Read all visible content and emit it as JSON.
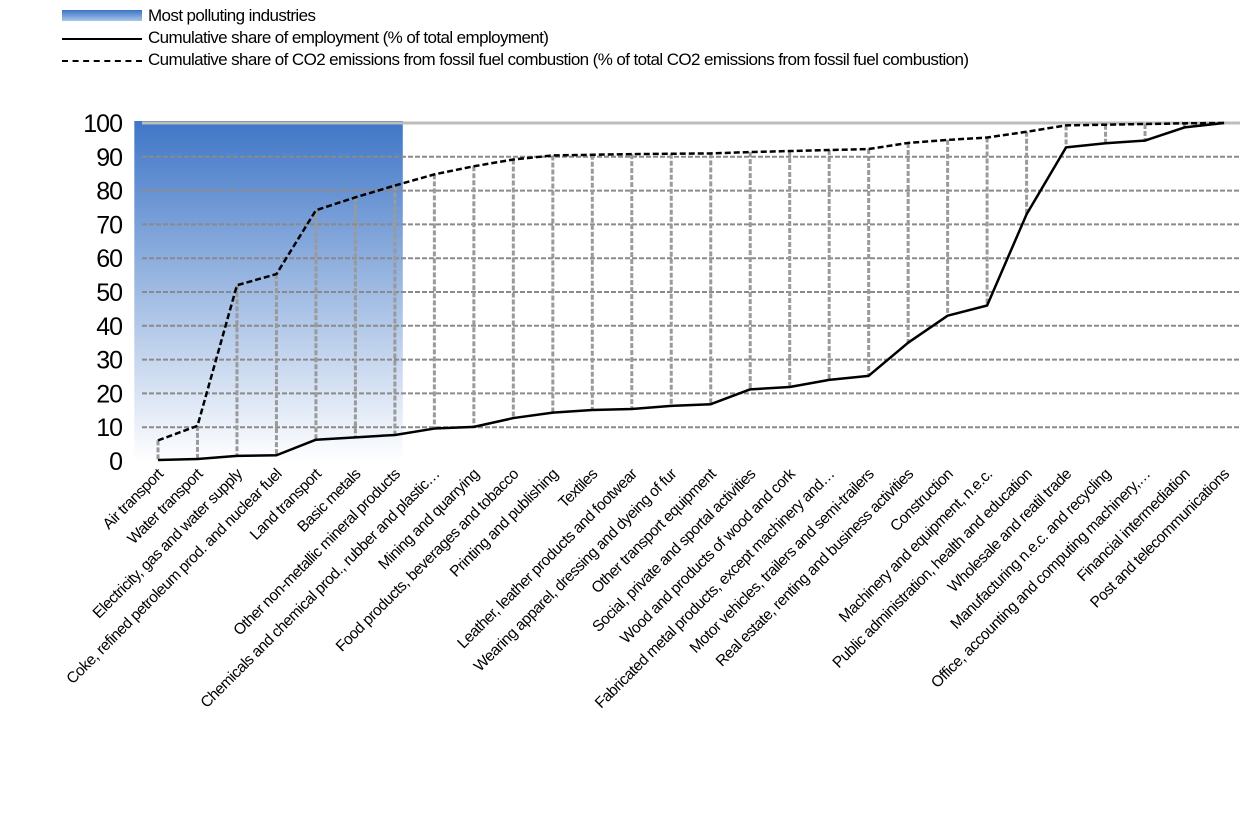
{
  "chart_data": {
    "type": "line",
    "title": "",
    "xlabel": "",
    "ylabel": "",
    "ylim": [
      0,
      100
    ],
    "yticks": [
      0,
      10,
      20,
      30,
      40,
      50,
      60,
      70,
      80,
      90,
      100
    ],
    "grid": true,
    "legend_position": "top-left",
    "highlight": {
      "name": "Most polluting industries",
      "from_category": "Air transport",
      "to_category": "Other non-metallic mineral products",
      "color": "#4a7fcb"
    },
    "categories": [
      "Air transport",
      "Water transport",
      "Electricity, gas and water supply",
      "Coke, refined petroleum prod. and nuclear fuel",
      "Land transport",
      "Basic metals",
      "Other non-metallic mineral products",
      "Chemicals and chemical prod., rubber and plastic…",
      "Mining and quarrying",
      "Food products, beverages and tobacco",
      "Printing and publishing",
      "Textiles",
      "Leather, leather products and footwear",
      "Wearing apparel, dressing and dyeing of fur",
      "Other transport equipment",
      "Social, private and sportal activities",
      "Wood and products of wood and cork",
      "Fabricated metal products, except machinery and…",
      "Motor vehicles, trailers and semi-trailers",
      "Real estate, renting and business activities",
      "Construction",
      "Machinery and equipment, n.e.c.",
      "Public administration, health and education",
      "Wholesale and reatil trade",
      "Manufacturing n.e.c. and recycling",
      "Office, accounting and computing machinery,…",
      "Financial intermediation",
      "Post and telecommunications"
    ],
    "series": [
      {
        "name": "Cumulative share of employment (% of total employment)",
        "style": "solid",
        "color": "#000000",
        "values": [
          0.3,
          0.6,
          1.5,
          1.7,
          6.3,
          7.0,
          7.7,
          9.6,
          10.1,
          12.7,
          14.3,
          15.1,
          15.4,
          16.3,
          16.8,
          21.2,
          21.9,
          24.0,
          25.2,
          35.0,
          43.0,
          46.0,
          73.0,
          92.8,
          94.0,
          94.8,
          98.7,
          100
        ]
      },
      {
        "name": "Cumulative share of CO2 emissions from fossil fuel combustion (% of total CO2 emissions from fossil fuel combustion)",
        "style": "dashed",
        "color": "#000000",
        "values": [
          6.1,
          10.4,
          52.0,
          55.3,
          74.2,
          78.0,
          81.5,
          84.8,
          87.2,
          89.2,
          90.4,
          90.6,
          90.8,
          90.9,
          91.0,
          91.4,
          91.7,
          92.0,
          92.3,
          94.1,
          95.0,
          95.7,
          97.4,
          99.3,
          99.5,
          99.7,
          99.9,
          100
        ]
      }
    ]
  }
}
